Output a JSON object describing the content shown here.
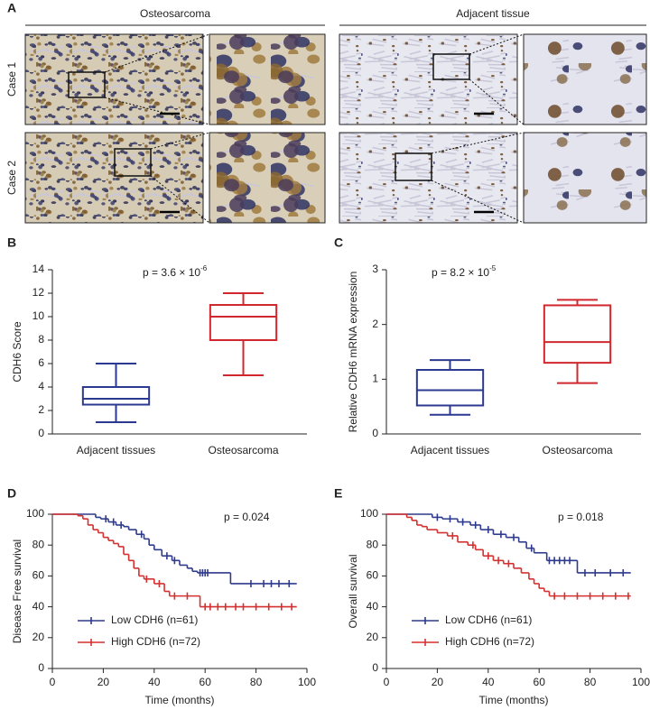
{
  "images": {
    "label": "A",
    "headers": [
      "Osteosarcoma",
      "Adjacent tissue"
    ],
    "rows": [
      "Case 1",
      "Case 2"
    ]
  },
  "chart_data": [
    {
      "type": "box",
      "label": "B",
      "ylabel": "CDH6 Score",
      "annotation": {
        "text": "p = 3.6 × 10",
        "superscript": "-6"
      },
      "categories": [
        "Adjacent tissues",
        "Osteosarcoma"
      ],
      "colors": [
        "#2b3990",
        "#d0282e"
      ],
      "min": [
        1,
        5
      ],
      "q1": [
        2.5,
        8
      ],
      "median": [
        3,
        10
      ],
      "q3": [
        4,
        11
      ],
      "max": [
        6,
        12
      ],
      "ylim": [
        0,
        14
      ],
      "yticks": [
        0,
        2,
        4,
        6,
        8,
        10,
        12,
        14
      ]
    },
    {
      "type": "box",
      "label": "C",
      "ylabel": "Relative CDH6 mRNA expression",
      "annotation": {
        "text": "p = 8.2 × 10",
        "superscript": "-5"
      },
      "categories": [
        "Adjacent tissues",
        "Osteosarcoma"
      ],
      "colors": [
        "#2b3990",
        "#d0282e"
      ],
      "min": [
        0.35,
        0.93
      ],
      "q1": [
        0.52,
        1.3
      ],
      "median": [
        0.8,
        1.68
      ],
      "q3": [
        1.17,
        2.35
      ],
      "max": [
        1.35,
        2.45
      ],
      "ylim": [
        0,
        3
      ],
      "yticks": [
        0,
        1,
        2,
        3
      ]
    },
    {
      "type": "step",
      "label": "D",
      "xlabel": "Time (months)",
      "ylabel": "Disease Free survival",
      "annotation": {
        "text": "p = 0.024"
      },
      "legend": "lower left",
      "xlim": [
        0,
        100
      ],
      "xticks": [
        0,
        20,
        40,
        60,
        80,
        100
      ],
      "ylim": [
        0,
        100
      ],
      "yticks": [
        0,
        20,
        40,
        60,
        80,
        100
      ],
      "series": [
        {
          "name": "Low CDH6 (n=61)",
          "color": "#2e3a8c",
          "x": [
            0,
            17,
            19,
            22,
            25,
            28,
            30,
            33,
            36,
            38,
            40,
            43,
            47,
            50,
            53,
            55,
            57,
            70,
            96
          ],
          "values": [
            100,
            98,
            97,
            95,
            93,
            92,
            90,
            87,
            84,
            80,
            77,
            73,
            70,
            67,
            65,
            63,
            62,
            55,
            55
          ],
          "censor_x": [
            21,
            24,
            27,
            35,
            45,
            48,
            58,
            59,
            60,
            61,
            78,
            83,
            86,
            89,
            93
          ],
          "censor_y": [
            97,
            95,
            93,
            87,
            73,
            70,
            62,
            62,
            62,
            62,
            55,
            55,
            55,
            55,
            55
          ]
        },
        {
          "name": "High CDH6 (n=72)",
          "color": "#d3302f",
          "x": [
            0,
            10,
            12,
            14,
            16,
            18,
            20,
            22,
            24,
            26,
            28,
            30,
            32,
            34,
            36,
            40,
            44,
            46,
            58,
            96
          ],
          "values": [
            100,
            99,
            97,
            93,
            90,
            88,
            85,
            83,
            81,
            79,
            74,
            70,
            65,
            60,
            58,
            55,
            50,
            47,
            40,
            40
          ],
          "censor_x": [
            37,
            42,
            48,
            53,
            60,
            62,
            65,
            68,
            72,
            75,
            80,
            85,
            90,
            94
          ],
          "censor_y": [
            58,
            55,
            47,
            47,
            40,
            40,
            40,
            40,
            40,
            40,
            40,
            40,
            40,
            40
          ]
        }
      ]
    },
    {
      "type": "step",
      "label": "E",
      "xlabel": "Time (months)",
      "ylabel": "Overall survival",
      "annotation": {
        "text": "p = 0.018"
      },
      "legend": "lower left",
      "xlim": [
        0,
        100
      ],
      "xticks": [
        0,
        20,
        40,
        60,
        80,
        100
      ],
      "ylim": [
        0,
        100
      ],
      "yticks": [
        0,
        20,
        40,
        60,
        80,
        100
      ],
      "series": [
        {
          "name": "Low CDH6 (n=61)",
          "color": "#2e3a8c",
          "x": [
            0,
            18,
            22,
            28,
            33,
            37,
            42,
            47,
            52,
            55,
            58,
            63,
            75,
            96
          ],
          "values": [
            100,
            98,
            97,
            95,
            93,
            90,
            87,
            85,
            82,
            78,
            75,
            70,
            62,
            62
          ],
          "censor_x": [
            20,
            25,
            30,
            35,
            40,
            45,
            50,
            57,
            64,
            66,
            68,
            70,
            72,
            78,
            82,
            88,
            93
          ],
          "censor_y": [
            98,
            97,
            95,
            93,
            90,
            87,
            85,
            78,
            70,
            70,
            70,
            70,
            70,
            62,
            62,
            62,
            62
          ]
        },
        {
          "name": "High CDH6 (n=72)",
          "color": "#d3302f",
          "x": [
            0,
            8,
            10,
            12,
            14,
            16,
            20,
            24,
            28,
            32,
            35,
            38,
            42,
            46,
            50,
            53,
            56,
            58,
            60,
            62,
            64,
            96
          ],
          "values": [
            100,
            98,
            96,
            93,
            92,
            90,
            88,
            86,
            82,
            80,
            77,
            73,
            70,
            68,
            65,
            62,
            58,
            55,
            52,
            50,
            47,
            47
          ],
          "censor_x": [
            26,
            34,
            40,
            44,
            48,
            66,
            70,
            75,
            80,
            85,
            90,
            95
          ],
          "censor_y": [
            86,
            80,
            73,
            70,
            68,
            47,
            47,
            47,
            47,
            47,
            47,
            47
          ]
        }
      ]
    }
  ]
}
